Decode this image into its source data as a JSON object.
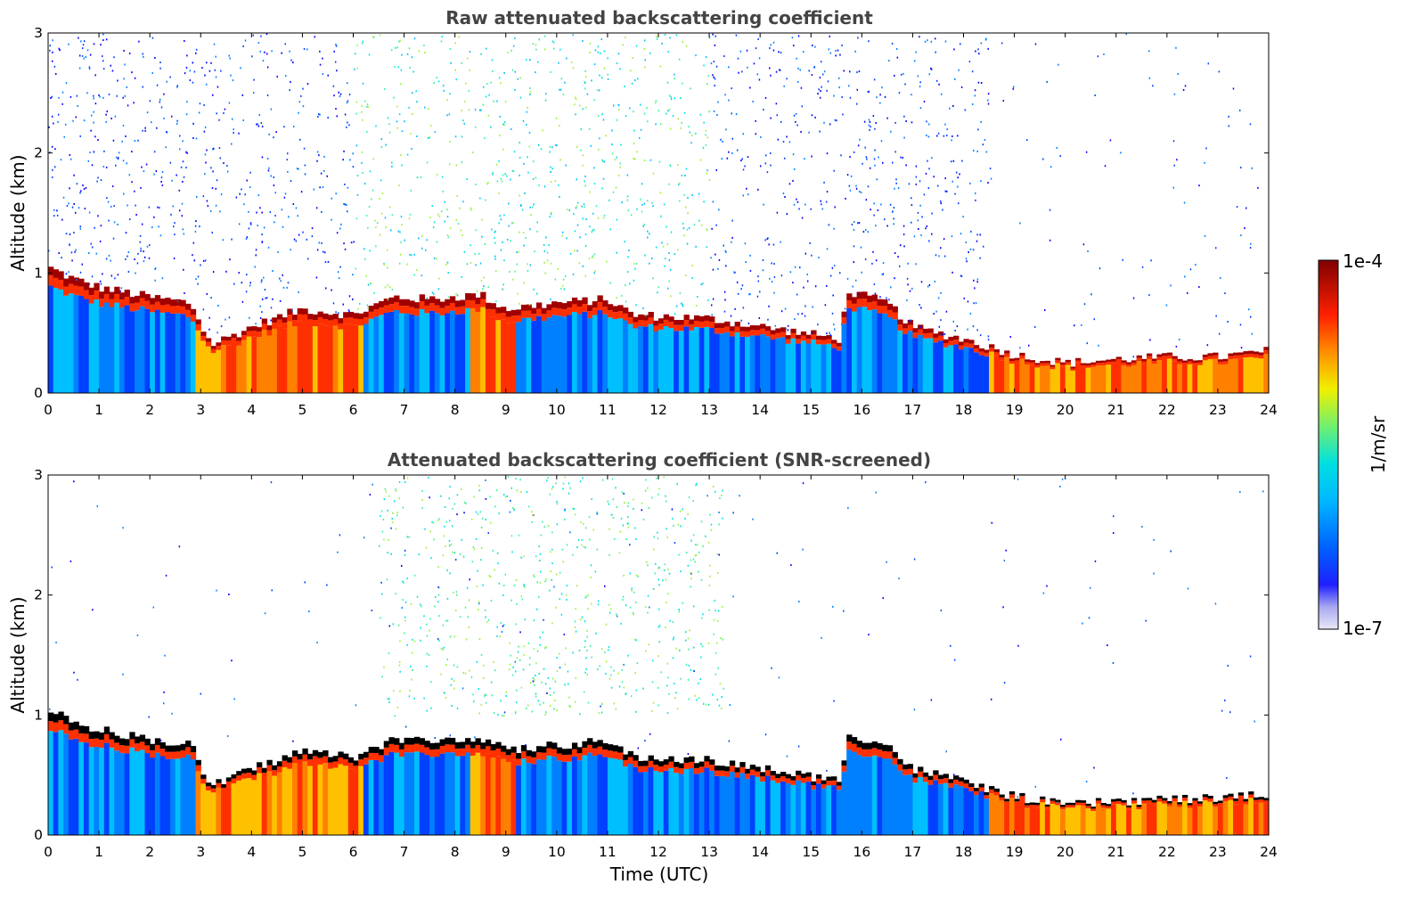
{
  "chart_data": [
    {
      "type": "heatmap",
      "title": "Raw attenuated backscattering coefficient",
      "xlabel": "",
      "ylabel": "Altitude (km)",
      "xlim": [
        0,
        24
      ],
      "ylim": [
        0,
        3
      ],
      "x_ticks": [
        "0",
        "1",
        "2",
        "3",
        "4",
        "5",
        "6",
        "7",
        "8",
        "9",
        "10",
        "11",
        "12",
        "13",
        "14",
        "15",
        "16",
        "17",
        "18",
        "19",
        "20",
        "21",
        "22",
        "23",
        "24"
      ],
      "y_ticks": [
        "0",
        "1",
        "2",
        "3"
      ],
      "layer_top_km": {
        "time_utc": [
          0,
          0.5,
          1,
          2,
          2.8,
          3.2,
          4,
          5,
          6,
          6.8,
          7.5,
          8.5,
          9,
          10,
          11,
          11.5,
          13,
          15.6,
          15.7,
          16.5,
          17,
          18,
          19,
          20,
          21,
          22,
          23,
          24
        ],
        "altitude_km": [
          1.05,
          0.95,
          0.88,
          0.8,
          0.75,
          0.4,
          0.55,
          0.7,
          0.65,
          0.8,
          0.78,
          0.82,
          0.7,
          0.75,
          0.78,
          0.65,
          0.62,
          0.45,
          0.85,
          0.75,
          0.55,
          0.45,
          0.32,
          0.25,
          0.28,
          0.3,
          0.3,
          0.35
        ]
      }
    },
    {
      "type": "heatmap",
      "title": "Attenuated backscattering coefficient (SNR-screened)",
      "xlabel": "Time (UTC)",
      "ylabel": "Altitude (km)",
      "xlim": [
        0,
        24
      ],
      "ylim": [
        0,
        3
      ],
      "x_ticks": [
        "0",
        "1",
        "2",
        "3",
        "4",
        "5",
        "6",
        "7",
        "8",
        "9",
        "10",
        "11",
        "12",
        "13",
        "14",
        "15",
        "16",
        "17",
        "18",
        "19",
        "20",
        "21",
        "22",
        "23",
        "24"
      ],
      "y_ticks": [
        "0",
        "1",
        "2",
        "3"
      ]
    }
  ],
  "colorbar": {
    "label": "1/m/sr",
    "max_label": "1e-4",
    "min_label": "1e-7",
    "colors": [
      "#e8e8f8",
      "#a8a8f0",
      "#6060f0",
      "#0000ff",
      "#0040ff",
      "#0080ff",
      "#00bfff",
      "#00e0e0",
      "#40f0a0",
      "#a0f040",
      "#f0f000",
      "#ffc000",
      "#ff8000",
      "#ff3000",
      "#e00000",
      "#a00000",
      "#800000"
    ]
  }
}
